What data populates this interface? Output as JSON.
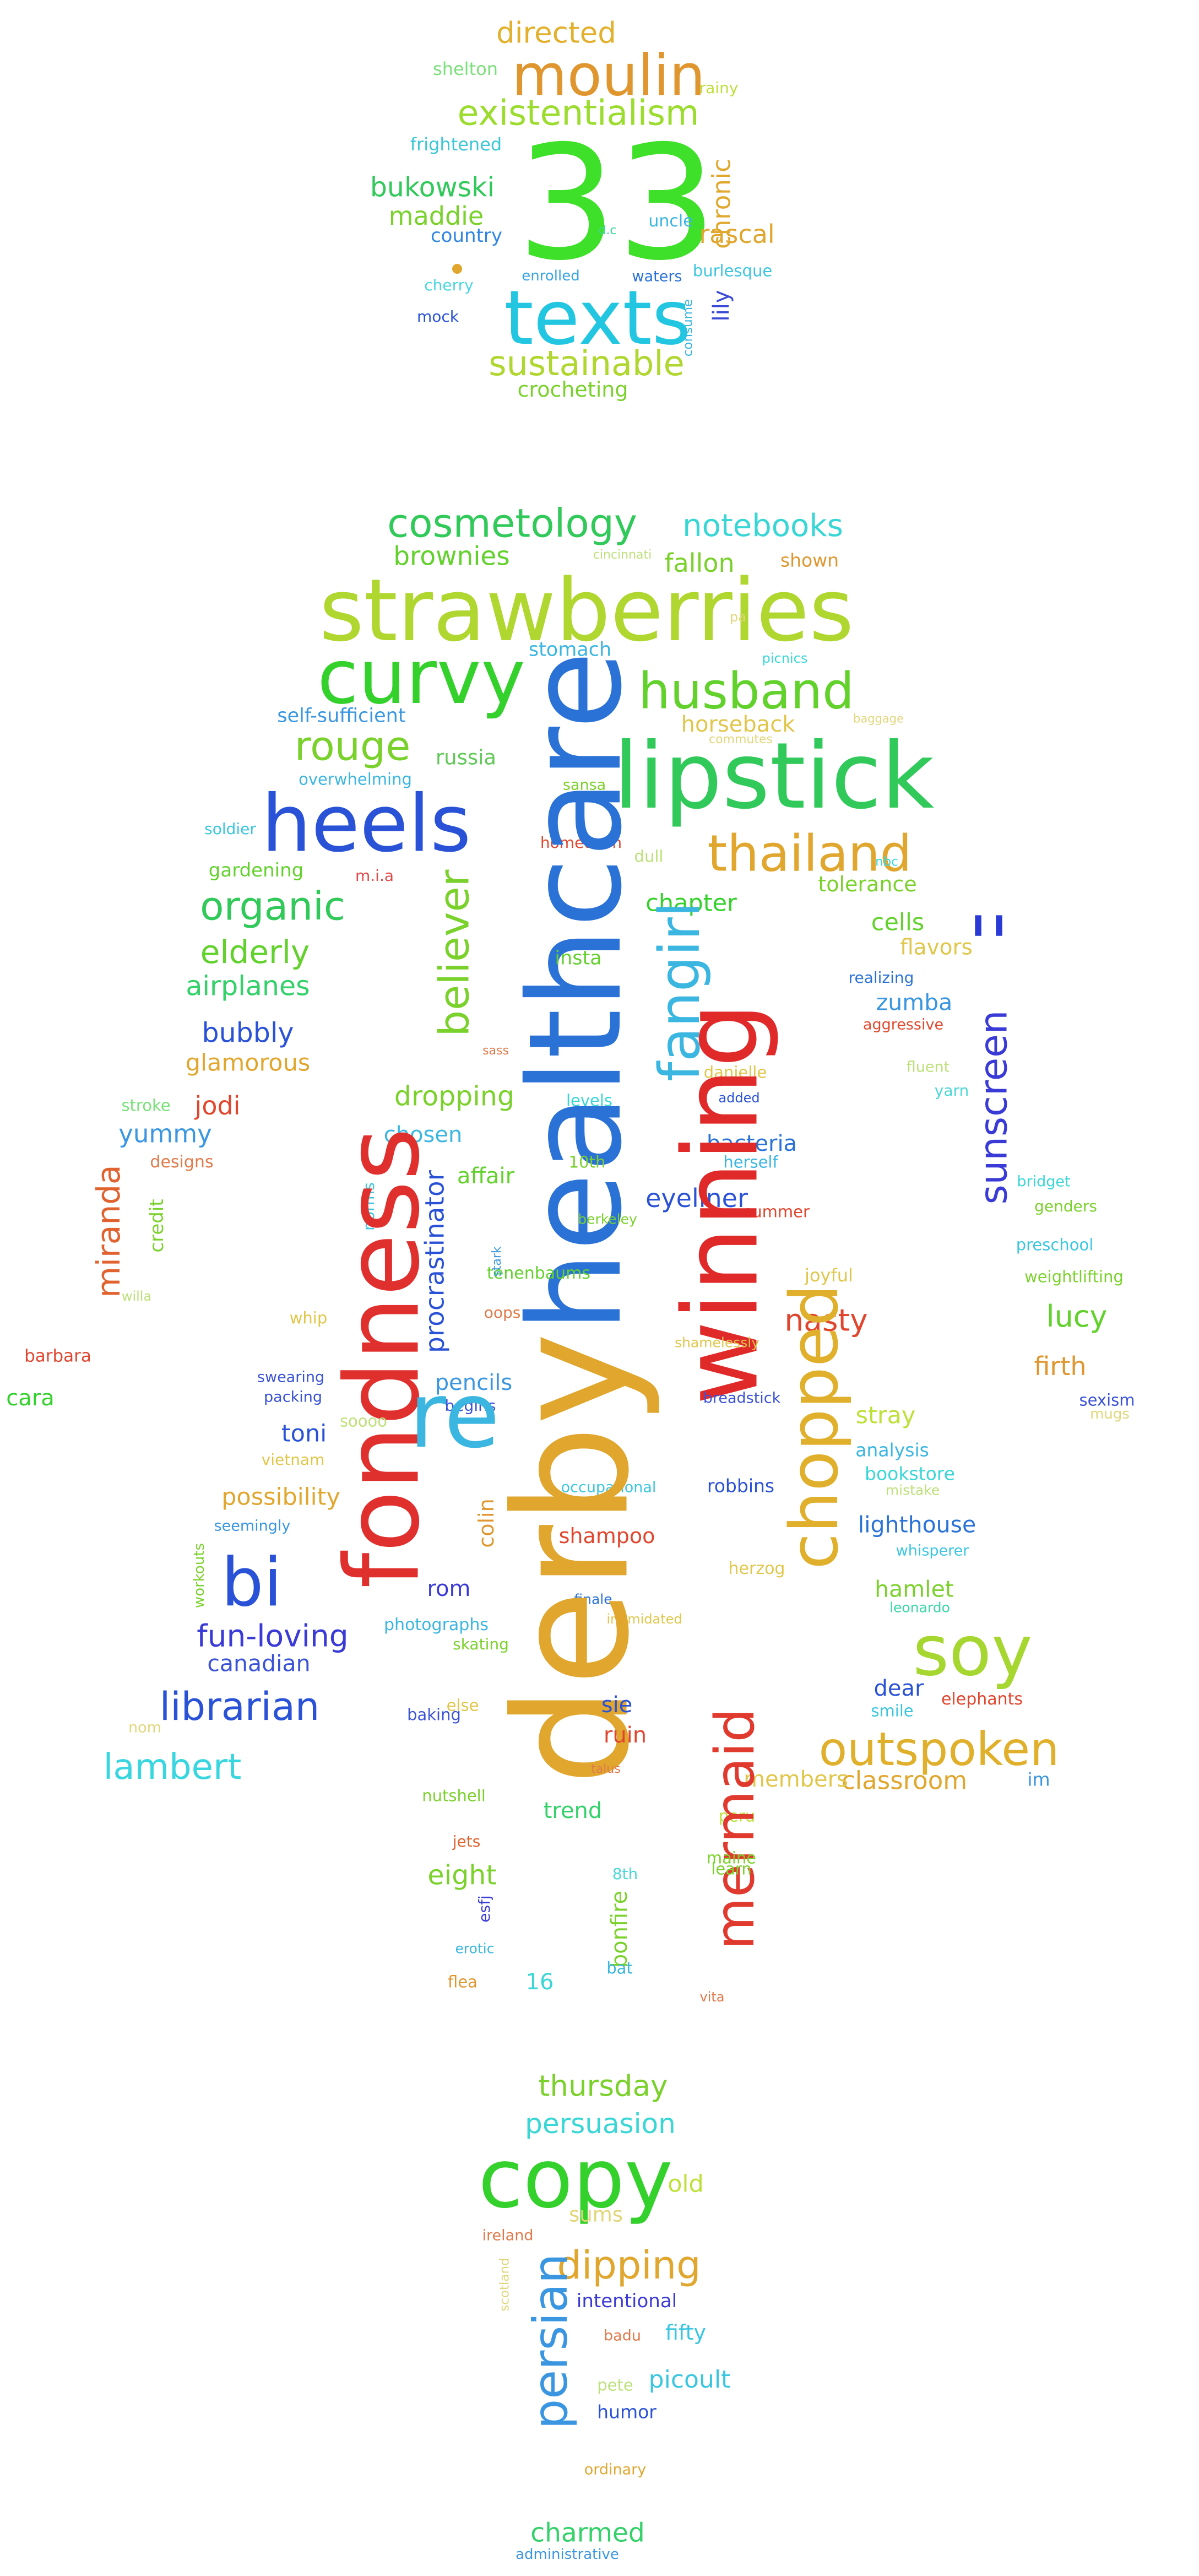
{
  "words": [
    {
      "t": "directed",
      "c": "#e3b02c"
    },
    {
      "t": "shelton",
      "c": "#7ae07a"
    },
    {
      "t": "rainy",
      "c": "#bde03a"
    },
    {
      "t": "moulin",
      "c": "#e0962e"
    },
    {
      "t": "existentialism",
      "c": "#9bdc2e"
    },
    {
      "t": "frightened",
      "c": "#3ac6d6"
    },
    {
      "t": "chronic",
      "c": "#e0a82e"
    },
    {
      "t": "33",
      "c": "#3fe02a"
    },
    {
      "t": "bukowski",
      "c": "#31c95a"
    },
    {
      "t": "uncle",
      "c": "#3ab6e0"
    },
    {
      "t": "rascal",
      "c": "#e0a62e"
    },
    {
      "t": "maddie",
      "c": "#7bd12c"
    },
    {
      "t": "country",
      "c": "#2f85e0"
    },
    {
      "t": "d.c",
      "c": "#3ad69a"
    },
    {
      "t": "enrolled",
      "c": "#3aa6e0"
    },
    {
      "t": "waters",
      "c": "#2a72d6"
    },
    {
      "t": "burlesque",
      "c": "#3ac6e0"
    },
    {
      "t": "cherry",
      "c": "#4ad6e0"
    },
    {
      "t": "lily",
      "c": "#3a4ad6"
    },
    {
      "t": "texts",
      "c": "#22c6e0"
    },
    {
      "t": "mock",
      "c": "#2a52d6"
    },
    {
      "t": "consume",
      "c": "#3ab6e0"
    },
    {
      "t": "sustainable",
      "c": "#b0d630"
    },
    {
      "t": "crocheting",
      "c": "#7ad12c"
    },
    {
      "t": "cosmetology",
      "c": "#31c95a"
    },
    {
      "t": "notebooks",
      "c": "#3ad6d6"
    },
    {
      "t": "brownies",
      "c": "#62d12c"
    },
    {
      "t": "fallon",
      "c": "#7bd12c"
    },
    {
      "t": "cincinnati",
      "c": "#bde07a"
    },
    {
      "t": "shown",
      "c": "#e0962e"
    },
    {
      "t": "strawberries",
      "c": "#b0d630"
    },
    {
      "t": "pa",
      "c": "#e0d67a"
    },
    {
      "t": "stomach",
      "c": "#3ab6e0"
    },
    {
      "t": "picnics",
      "c": "#3ad6d6"
    },
    {
      "t": "curvy",
      "c": "#34d12c"
    },
    {
      "t": "husband",
      "c": "#62d12c"
    },
    {
      "t": "self-sufficient",
      "c": "#3a96e0"
    },
    {
      "t": "rouge",
      "c": "#7ad12c"
    },
    {
      "t": "horseback",
      "c": "#e0c64a"
    },
    {
      "t": "baggage",
      "c": "#e0d67a"
    },
    {
      "t": "commutes",
      "c": "#e0d67a"
    },
    {
      "t": "russia",
      "c": "#62c95a"
    },
    {
      "t": "overwhelming",
      "c": "#3ab6e0"
    },
    {
      "t": "lipstick",
      "c": "#31c95a"
    },
    {
      "t": "heels",
      "c": "#2a52d6"
    },
    {
      "t": "sansa",
      "c": "#7bd12c"
    },
    {
      "t": "soldier",
      "c": "#3ac6e0"
    },
    {
      "t": "hometown",
      "c": "#e0462e"
    },
    {
      "t": "dull",
      "c": "#bde07a"
    },
    {
      "t": "thailand",
      "c": "#e0a62e"
    },
    {
      "t": "nbc",
      "c": "#3ad6e0"
    },
    {
      "t": "gardening",
      "c": "#62d12c"
    },
    {
      "t": "m.i.a",
      "c": "#e04a4a"
    },
    {
      "t": "organic",
      "c": "#31c95a"
    },
    {
      "t": "healthcare",
      "c": "#2a72d6"
    },
    {
      "t": "chapter",
      "c": "#34d12c"
    },
    {
      "t": "tolerance",
      "c": "#7bd12c"
    },
    {
      "t": "elderly",
      "c": "#62d12c"
    },
    {
      "t": "fangirl",
      "c": "#3ab6e0"
    },
    {
      "t": "believer",
      "c": "#7bd12c"
    },
    {
      "t": "cells",
      "c": "#62d12c"
    },
    {
      "t": "insta",
      "c": "#62d12c"
    },
    {
      "t": "flavors",
      "c": "#e0c64a"
    },
    {
      "t": "''",
      "c": "#2a3ad6"
    },
    {
      "t": "airplanes",
      "c": "#34d16a"
    },
    {
      "t": "realizing",
      "c": "#2a72d6"
    },
    {
      "t": "zumba",
      "c": "#3a96e0"
    },
    {
      "t": "aggressive",
      "c": "#e04a2e"
    },
    {
      "t": "bubbly",
      "c": "#2a52d6"
    },
    {
      "t": "sass",
      "c": "#e07a4a"
    },
    {
      "t": "glamorous",
      "c": "#e0a62e"
    },
    {
      "t": "dropping",
      "c": "#7bd12c"
    },
    {
      "t": "levels",
      "c": "#3ad6d6"
    },
    {
      "t": "danielle",
      "c": "#e0c64a"
    },
    {
      "t": "fluent",
      "c": "#bde07a"
    },
    {
      "t": "jodi",
      "c": "#e0462e"
    },
    {
      "t": "stroke",
      "c": "#7ae07a"
    },
    {
      "t": "added",
      "c": "#2a52d6"
    },
    {
      "t": "yarn",
      "c": "#4ad6d6"
    },
    {
      "t": "sunscreen",
      "c": "#3a3ad6"
    },
    {
      "t": "chosen",
      "c": "#3ab6e0"
    },
    {
      "t": "bacteria",
      "c": "#2a72d6"
    },
    {
      "t": "yummy",
      "c": "#3a96e0"
    },
    {
      "t": "designs",
      "c": "#e07a4a"
    },
    {
      "t": "affair",
      "c": "#62d12c"
    },
    {
      "t": "10th",
      "c": "#7bd12c"
    },
    {
      "t": "herself",
      "c": "#3ab6e0"
    },
    {
      "t": "bridget",
      "c": "#3ad6d6"
    },
    {
      "t": "miranda",
      "c": "#e0622e"
    },
    {
      "t": "procrastinator",
      "c": "#2a52d6"
    },
    {
      "t": "eyeliner",
      "c": "#2a52d6"
    },
    {
      "t": "summer",
      "c": "#e0462e"
    },
    {
      "t": "genders",
      "c": "#7bd12c"
    },
    {
      "t": "norms",
      "c": "#3ac6e0"
    },
    {
      "t": "berkeley",
      "c": "#7bd12c"
    },
    {
      "t": "preschool",
      "c": "#3ac6e0"
    },
    {
      "t": "credit",
      "c": "#7bd12c"
    },
    {
      "t": "joyful",
      "c": "#e0c64a"
    },
    {
      "t": "weightlifting",
      "c": "#7bd12c"
    },
    {
      "t": "tenenbaums",
      "c": "#62d12c"
    },
    {
      "t": "stark",
      "c": "#3a96e0"
    },
    {
      "t": "willa",
      "c": "#bde07a"
    },
    {
      "t": "winning",
      "c": "#e02a2a"
    },
    {
      "t": "nasty",
      "c": "#e0462e"
    },
    {
      "t": "lucy",
      "c": "#62d12c"
    },
    {
      "t": "oops",
      "c": "#e07a4a"
    },
    {
      "t": "whip",
      "c": "#e0c64a"
    },
    {
      "t": "barbara",
      "c": "#e0462e"
    },
    {
      "t": "shamelessly",
      "c": "#e0c64a"
    },
    {
      "t": "firth",
      "c": "#e0962e"
    },
    {
      "t": "fondness",
      "c": "#e0302e"
    },
    {
      "t": "swearing",
      "c": "#3a52d6"
    },
    {
      "t": "pencils",
      "c": "#3a96e0"
    },
    {
      "t": "cara",
      "c": "#34d12c"
    },
    {
      "t": "packing",
      "c": "#3a52d6"
    },
    {
      "t": "begins",
      "c": "#3a52d6"
    },
    {
      "t": "breadstick",
      "c": "#3a52d6"
    },
    {
      "t": "sexism",
      "c": "#3a52d6"
    },
    {
      "t": "mugs",
      "c": "#e0d67a"
    },
    {
      "t": "re",
      "c": "#3ab6e0"
    },
    {
      "t": "toni",
      "c": "#2a52d6"
    },
    {
      "t": "soooo",
      "c": "#bde07a"
    },
    {
      "t": "stray",
      "c": "#bde03a"
    },
    {
      "t": "vietnam",
      "c": "#e0c64a"
    },
    {
      "t": "chopped",
      "c": "#e0b02c"
    },
    {
      "t": "analysis",
      "c": "#3ab6e0"
    },
    {
      "t": "occupational",
      "c": "#3ac6e0"
    },
    {
      "t": "bookstore",
      "c": "#3ad6d6"
    },
    {
      "t": "mistake",
      "c": "#bde07a"
    },
    {
      "t": "possibility",
      "c": "#e0a62e"
    },
    {
      "t": "robbins",
      "c": "#2a52d6"
    },
    {
      "t": "colin",
      "c": "#e0962e"
    },
    {
      "t": "seemingly",
      "c": "#3a96e0"
    },
    {
      "t": "lighthouse",
      "c": "#2a72d6"
    },
    {
      "t": "shampoo",
      "c": "#e0462e"
    },
    {
      "t": "whisperer",
      "c": "#3ac6e0"
    },
    {
      "t": "workouts",
      "c": "#7bd12c"
    },
    {
      "t": "bi",
      "c": "#2a52d6"
    },
    {
      "t": "herzog",
      "c": "#e0c64a"
    },
    {
      "t": "hamlet",
      "c": "#7bd12c"
    },
    {
      "t": "rom",
      "c": "#3a3ad6"
    },
    {
      "t": "leonardo",
      "c": "#3ad6a6"
    },
    {
      "t": "finale",
      "c": "#2a72d6"
    },
    {
      "t": "photographs",
      "c": "#3ab6e0"
    },
    {
      "t": "intimidated",
      "c": "#e0c64a"
    },
    {
      "t": "fun-loving",
      "c": "#3a3ad6"
    },
    {
      "t": "skating",
      "c": "#7bd12c"
    },
    {
      "t": "soy",
      "c": "#a6d630"
    },
    {
      "t": "canadian",
      "c": "#3a52d6"
    },
    {
      "t": "derby",
      "c": "#e0a62e"
    },
    {
      "t": "dear",
      "c": "#2a52d6"
    },
    {
      "t": "elephants",
      "c": "#e0462e"
    },
    {
      "t": "librarian",
      "c": "#2a52d6"
    },
    {
      "t": "sie",
      "c": "#2a52d6"
    },
    {
      "t": "else",
      "c": "#e0c64a"
    },
    {
      "t": "smile",
      "c": "#3ac6e0"
    },
    {
      "t": "nom",
      "c": "#e0d67a"
    },
    {
      "t": "baking",
      "c": "#3a52d6"
    },
    {
      "t": "ruin",
      "c": "#e0462e"
    },
    {
      "t": "outspoken",
      "c": "#e0b02c"
    },
    {
      "t": "lambert",
      "c": "#3ad6e0"
    },
    {
      "t": "talus",
      "c": "#e07a4a"
    },
    {
      "t": "classroom",
      "c": "#e0a62e"
    },
    {
      "t": "im",
      "c": "#3a96e0"
    },
    {
      "t": "members",
      "c": "#e0c64a"
    },
    {
      "t": "nutshell",
      "c": "#7bd12c"
    },
    {
      "t": "trend",
      "c": "#34d16a"
    },
    {
      "t": "peru",
      "c": "#bde03a"
    },
    {
      "t": "mermaid",
      "c": "#e03a2e"
    },
    {
      "t": "jets",
      "c": "#e0622e"
    },
    {
      "t": "maine",
      "c": "#7bd12c"
    },
    {
      "t": "eight",
      "c": "#7bd12c"
    },
    {
      "t": "8th",
      "c": "#4ad6d6"
    },
    {
      "t": "learn",
      "c": "#7bd12c"
    },
    {
      "t": "esfj",
      "c": "#3a3ad6"
    },
    {
      "t": "bonfire",
      "c": "#7bd12c"
    },
    {
      "t": "erotic",
      "c": "#3ab6e0"
    },
    {
      "t": "bat",
      "c": "#3ab6e0"
    },
    {
      "t": "16",
      "c": "#3ad6d6"
    },
    {
      "t": "flea",
      "c": "#e0962e"
    },
    {
      "t": "vita",
      "c": "#e07a4a"
    },
    {
      "t": "thursday",
      "c": "#7bd12c"
    },
    {
      "t": "persuasion",
      "c": "#3ad6d6"
    },
    {
      "t": "copy",
      "c": "#34d12c"
    },
    {
      "t": "old",
      "c": "#bde03a"
    },
    {
      "t": "sums",
      "c": "#e0d67a"
    },
    {
      "t": "ireland",
      "c": "#e07a4a"
    },
    {
      "t": "dipping",
      "c": "#e0a62e"
    },
    {
      "t": "scotland",
      "c": "#e0d67a"
    },
    {
      "t": "intentional",
      "c": "#3a3ad6"
    },
    {
      "t": "fifty",
      "c": "#3ac6e0"
    },
    {
      "t": "badu",
      "c": "#e07a4a"
    },
    {
      "t": "persian",
      "c": "#3a96e0"
    },
    {
      "t": "picoult",
      "c": "#3ac6e0"
    },
    {
      "t": "pete",
      "c": "#bde07a"
    },
    {
      "t": "humor",
      "c": "#2a52d6"
    },
    {
      "t": "ordinary",
      "c": "#e0a62e"
    },
    {
      "t": "charmed",
      "c": "#34d16a"
    },
    {
      "t": "administrative",
      "c": "#3a96e0"
    }
  ],
  "marks": [
    {
      "name": "small-dot",
      "c": "#e0a62e"
    }
  ]
}
